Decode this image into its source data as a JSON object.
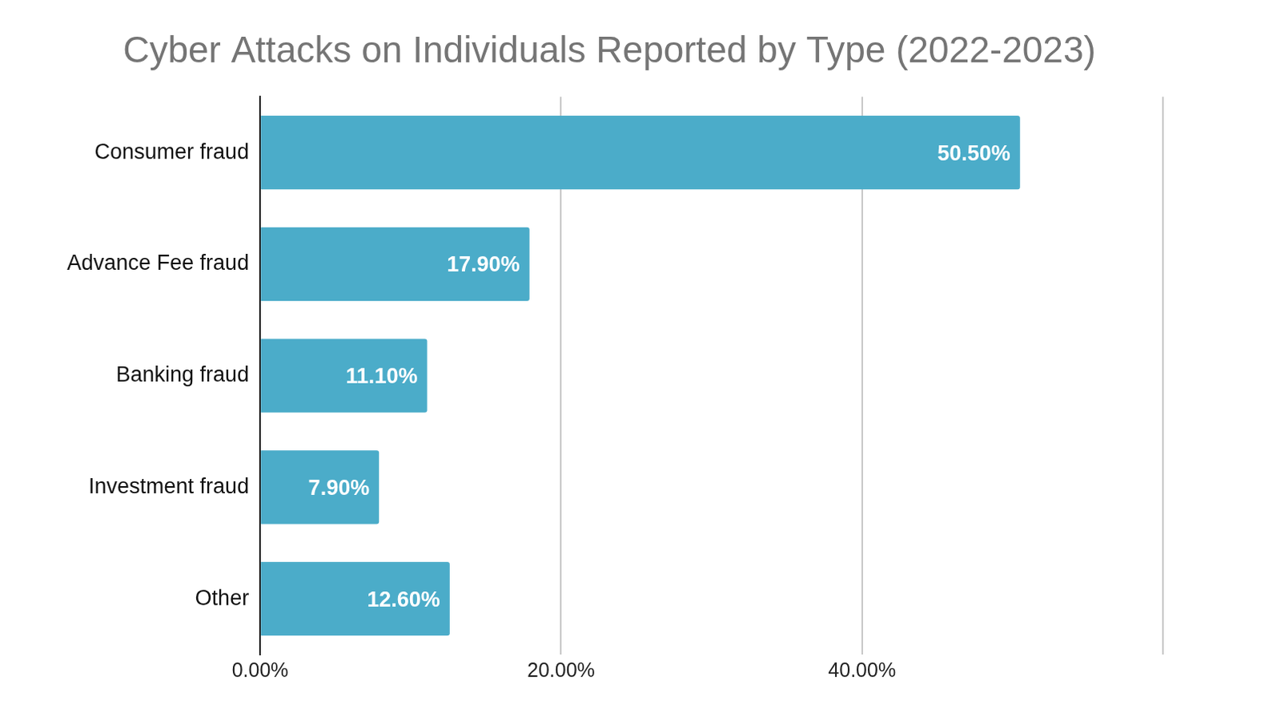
{
  "chart_data": {
    "type": "bar",
    "orientation": "horizontal",
    "title": "Cyber Attacks on Individuals Reported by Type (2022-2023)",
    "categories": [
      "Consumer fraud",
      "Advance Fee fraud",
      "Banking fraud",
      "Investment fraud",
      "Other"
    ],
    "values": [
      50.5,
      17.9,
      11.1,
      7.9,
      12.6
    ],
    "value_labels": [
      "50.50%",
      "17.90%",
      "11.10%",
      "7.90%",
      "12.60%"
    ],
    "color": "#4bacc9",
    "xlim": [
      0,
      60
    ],
    "xticks": [
      {
        "value": 0,
        "label": "0.00%"
      },
      {
        "value": 20,
        "label": "20.00%"
      },
      {
        "value": 40,
        "label": "40.00%"
      }
    ],
    "grid": true,
    "data_labels": true
  }
}
